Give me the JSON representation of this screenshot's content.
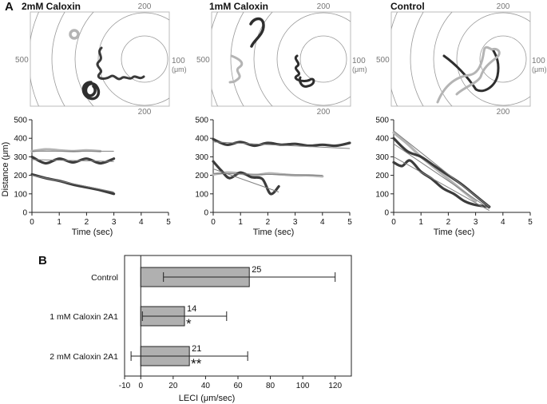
{
  "panel_labels": {
    "a": "A",
    "b": "B"
  },
  "charts": [
    {
      "id": "caloxin2",
      "title": "2mM Caloxin",
      "radial": {
        "label_top": "200",
        "label_left": "500",
        "label_right": "100",
        "label_right_unit": "(μm)",
        "label_bottom": "200"
      }
    },
    {
      "id": "caloxin1",
      "title": "1mM Caloxin",
      "radial": {
        "label_top": "200",
        "label_left": "500",
        "label_right": "100",
        "label_right_unit": "(μm)",
        "label_bottom": "200"
      }
    },
    {
      "id": "control",
      "title": "Control",
      "radial": {
        "label_top": "200",
        "label_left": "500",
        "label_right": "100",
        "label_right_unit": "(μm)",
        "label_bottom": "200"
      }
    }
  ],
  "chart_data": [
    {
      "type": "line",
      "panel": "2mM Caloxin",
      "xlabel": "Time (sec)",
      "ylabel": "Distance (μm)",
      "xlim": [
        0,
        5
      ],
      "ylim": [
        0,
        500
      ],
      "xticks": [
        "0",
        "1",
        "2",
        "3",
        "4",
        "5"
      ],
      "yticks": [
        "0",
        "100",
        "200",
        "300",
        "400",
        "500"
      ],
      "series": [
        {
          "color": "#b4b4b4",
          "kind": "track",
          "x": [
            0,
            0.5,
            1,
            1.5,
            2,
            2.5
          ],
          "y": [
            330,
            340,
            335,
            330,
            335,
            330
          ]
        },
        {
          "color": "#3c3c3c",
          "kind": "track",
          "x": [
            0,
            0.5,
            1,
            1.5,
            2,
            2.5,
            3
          ],
          "y": [
            300,
            265,
            290,
            270,
            290,
            265,
            290
          ]
        },
        {
          "color": "#3c3c3c",
          "kind": "track",
          "x": [
            0,
            0.5,
            1,
            1.5,
            2,
            2.5,
            3
          ],
          "y": [
            205,
            185,
            170,
            150,
            135,
            120,
            100
          ]
        },
        {
          "color": "#808080",
          "kind": "fit",
          "x": [
            0,
            3
          ],
          "y": [
            330,
            330
          ]
        },
        {
          "color": "#808080",
          "kind": "fit",
          "x": [
            0,
            3
          ],
          "y": [
            285,
            275
          ]
        },
        {
          "color": "#808080",
          "kind": "fit",
          "x": [
            0,
            3
          ],
          "y": [
            200,
            110
          ]
        }
      ]
    },
    {
      "type": "line",
      "panel": "1mM Caloxin",
      "xlabel": "Time (sec)",
      "ylabel": "",
      "xlim": [
        0,
        5
      ],
      "ylim": [
        0,
        500
      ],
      "xticks": [
        "0",
        "1",
        "2",
        "3",
        "4",
        "5"
      ],
      "yticks": [
        "0",
        "100",
        "200",
        "300",
        "400",
        "500"
      ],
      "series": [
        {
          "color": "#3c3c3c",
          "kind": "track",
          "x": [
            0,
            0.5,
            1,
            1.5,
            2,
            2.5,
            3,
            3.5,
            4,
            4.5,
            5
          ],
          "y": [
            395,
            365,
            380,
            360,
            375,
            365,
            370,
            360,
            365,
            360,
            375
          ]
        },
        {
          "color": "#b4b4b4",
          "kind": "track",
          "x": [
            0,
            0.5,
            1,
            1.5,
            2,
            2.5,
            3,
            3.5,
            4
          ],
          "y": [
            205,
            215,
            210,
            200,
            210,
            205,
            200,
            200,
            195
          ]
        },
        {
          "color": "#3c3c3c",
          "kind": "track",
          "x": [
            0,
            0.3,
            0.6,
            1,
            1.4,
            1.8,
            2.1,
            2.4
          ],
          "y": [
            275,
            225,
            185,
            215,
            190,
            180,
            100,
            140
          ]
        },
        {
          "color": "#808080",
          "kind": "fit",
          "x": [
            0,
            5
          ],
          "y": [
            380,
            345
          ]
        },
        {
          "color": "#808080",
          "kind": "fit",
          "x": [
            0,
            4
          ],
          "y": [
            210,
            200
          ]
        },
        {
          "color": "#808080",
          "kind": "fit",
          "x": [
            0,
            2.4
          ],
          "y": [
            235,
            110
          ]
        }
      ]
    },
    {
      "type": "line",
      "panel": "Control",
      "xlabel": "Time (sec)",
      "ylabel": "",
      "xlim": [
        0,
        5
      ],
      "ylim": [
        0,
        500
      ],
      "xticks": [
        "0",
        "1",
        "2",
        "3",
        "4",
        "5"
      ],
      "yticks": [
        "0",
        "100",
        "200",
        "300",
        "400",
        "500"
      ],
      "series": [
        {
          "color": "#b4b4b4",
          "kind": "track",
          "x": [
            0,
            0.5,
            1,
            1.5,
            2,
            2.5,
            3
          ],
          "y": [
            430,
            370,
            300,
            240,
            180,
            120,
            60
          ]
        },
        {
          "color": "#3c3c3c",
          "kind": "track",
          "x": [
            0,
            0.5,
            1,
            1.5,
            2,
            2.5,
            3,
            3.5
          ],
          "y": [
            400,
            330,
            300,
            250,
            200,
            150,
            90,
            30
          ]
        },
        {
          "color": "#3c3c3c",
          "kind": "track",
          "x": [
            0,
            0.3,
            0.6,
            1,
            1.4,
            1.8,
            2.2,
            2.6,
            3,
            3.5
          ],
          "y": [
            270,
            250,
            280,
            220,
            180,
            130,
            100,
            60,
            40,
            30
          ]
        },
        {
          "color": "#808080",
          "kind": "fit",
          "x": [
            0,
            3.5
          ],
          "y": [
            440,
            30
          ]
        },
        {
          "color": "#808080",
          "kind": "fit",
          "x": [
            0,
            3.5
          ],
          "y": [
            370,
            20
          ]
        },
        {
          "color": "#808080",
          "kind": "fit",
          "x": [
            0,
            3.5
          ],
          "y": [
            300,
            10
          ]
        }
      ]
    },
    {
      "type": "bar",
      "orientation": "horizontal",
      "panel": "B",
      "categories": [
        "Control",
        "1 mM Caloxin 2A1",
        "2 mM Caloxin 2A1"
      ],
      "values": [
        67,
        27,
        30
      ],
      "error": [
        53,
        26,
        36
      ],
      "labels": [
        "25",
        "14",
        "21"
      ],
      "significance": [
        "",
        "*",
        "**"
      ],
      "xlabel": "LECI (μm/sec)",
      "xlim": [
        -10,
        130
      ],
      "xticks": [
        "-10",
        "0",
        "20",
        "40",
        "60",
        "80",
        "100",
        "120"
      ],
      "bar_color": "#b0b0b0"
    }
  ]
}
